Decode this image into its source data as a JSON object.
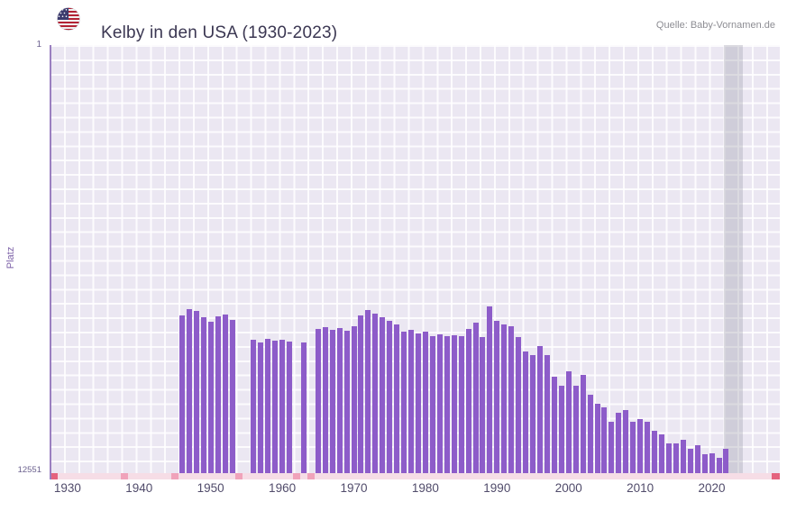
{
  "header": {
    "title": "Kelby in den USA (1930-2023)",
    "source": "Quelle: Baby-Vornamen.de",
    "flag": "us-flag"
  },
  "chart_data": {
    "type": "bar",
    "title": "Kelby in den USA (1930-2023)",
    "xlabel": "",
    "ylabel": "Platz",
    "y_axis": {
      "top_label": "1",
      "bottom_label": "12551",
      "min": 1,
      "max": 12551,
      "inverted": true
    },
    "x_ticks": [
      1930,
      1940,
      1950,
      1960,
      1970,
      1980,
      1990,
      2000,
      2010,
      2020
    ],
    "x_range": [
      1927.5,
      2029.5
    ],
    "grid": true,
    "bar_color": "#8d5cc9",
    "plot_bg": "#ebe7f2",
    "grid_color": "#ffffff",
    "highlight_band": {
      "from_year": 2021.7,
      "to_year": 2024.3,
      "color": "rgba(150,150,165,0.32)"
    },
    "baseline": {
      "strip_color": "#f6dde6",
      "mark_color": "#f0a3ba",
      "cap_color": "#e4637e",
      "mark_years": [
        1938,
        1945,
        1954,
        1962,
        1964
      ]
    },
    "years": [
      1930,
      1931,
      1932,
      1933,
      1934,
      1935,
      1936,
      1937,
      1938,
      1939,
      1940,
      1941,
      1942,
      1943,
      1944,
      1945,
      1946,
      1947,
      1948,
      1949,
      1950,
      1951,
      1952,
      1953,
      1954,
      1955,
      1956,
      1957,
      1958,
      1959,
      1960,
      1961,
      1962,
      1963,
      1964,
      1965,
      1966,
      1967,
      1968,
      1969,
      1970,
      1971,
      1972,
      1973,
      1974,
      1975,
      1976,
      1977,
      1978,
      1979,
      1980,
      1981,
      1982,
      1983,
      1984,
      1985,
      1986,
      1987,
      1988,
      1989,
      1990,
      1991,
      1992,
      1993,
      1994,
      1995,
      1996,
      1997,
      1998,
      1999,
      2000,
      2001,
      2002,
      2003,
      2004,
      2005,
      2006,
      2007,
      2008,
      2009,
      2010,
      2011,
      2012,
      2013,
      2014,
      2015,
      2016,
      2017,
      2018,
      2019,
      2020,
      2021,
      2022,
      2023
    ],
    "ranks": [
      null,
      null,
      null,
      null,
      null,
      null,
      null,
      null,
      null,
      null,
      null,
      null,
      null,
      null,
      null,
      null,
      7930,
      7740,
      7790,
      7980,
      8110,
      7950,
      7900,
      8060,
      null,
      null,
      8640,
      8720,
      8610,
      8670,
      8640,
      8690,
      null,
      8720,
      null,
      8320,
      8270,
      8350,
      8300,
      8380,
      8240,
      7930,
      7770,
      7870,
      7980,
      8080,
      8190,
      8400,
      8350,
      8450,
      8400,
      8530,
      8480,
      8530,
      8510,
      8530,
      8320,
      8140,
      8560,
      7660,
      8080,
      8190,
      8240,
      8560,
      8980,
      9090,
      8820,
      9090,
      9720,
      9990,
      9570,
      9990,
      9670,
      10250,
      10520,
      10620,
      11040,
      10780,
      10700,
      11040,
      10960,
      11040,
      11310,
      11410,
      11680,
      11680,
      11570,
      11840,
      11730,
      12000,
      11970,
      12100,
      11840,
      null
    ]
  }
}
